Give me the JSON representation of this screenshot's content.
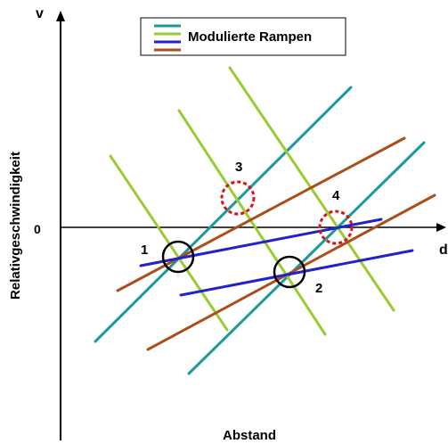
{
  "axes": {
    "y_axis_letter": "v",
    "x_axis_letter": "d",
    "zero_label": "0",
    "y_axis_title": "Relativgeschwindigkeit",
    "x_axis_title": "Abstand"
  },
  "legend": {
    "label": "Modulierte Rampen",
    "swatch_colors": [
      "#1a9a9a",
      "#99cc33",
      "#2222cc",
      "#aa4f1a"
    ]
  },
  "colors": {
    "teal": "#1a9a9a",
    "green": "#99cc33",
    "blue": "#2222cc",
    "brown": "#aa4f1a",
    "solid_marker": "#000000",
    "dashed_marker": "#dd1111"
  },
  "intersection_markers": [
    {
      "label": "1",
      "style": "solid"
    },
    {
      "label": "2",
      "style": "solid"
    },
    {
      "label": "3",
      "style": "dashed"
    },
    {
      "label": "4",
      "style": "dashed"
    }
  ]
}
